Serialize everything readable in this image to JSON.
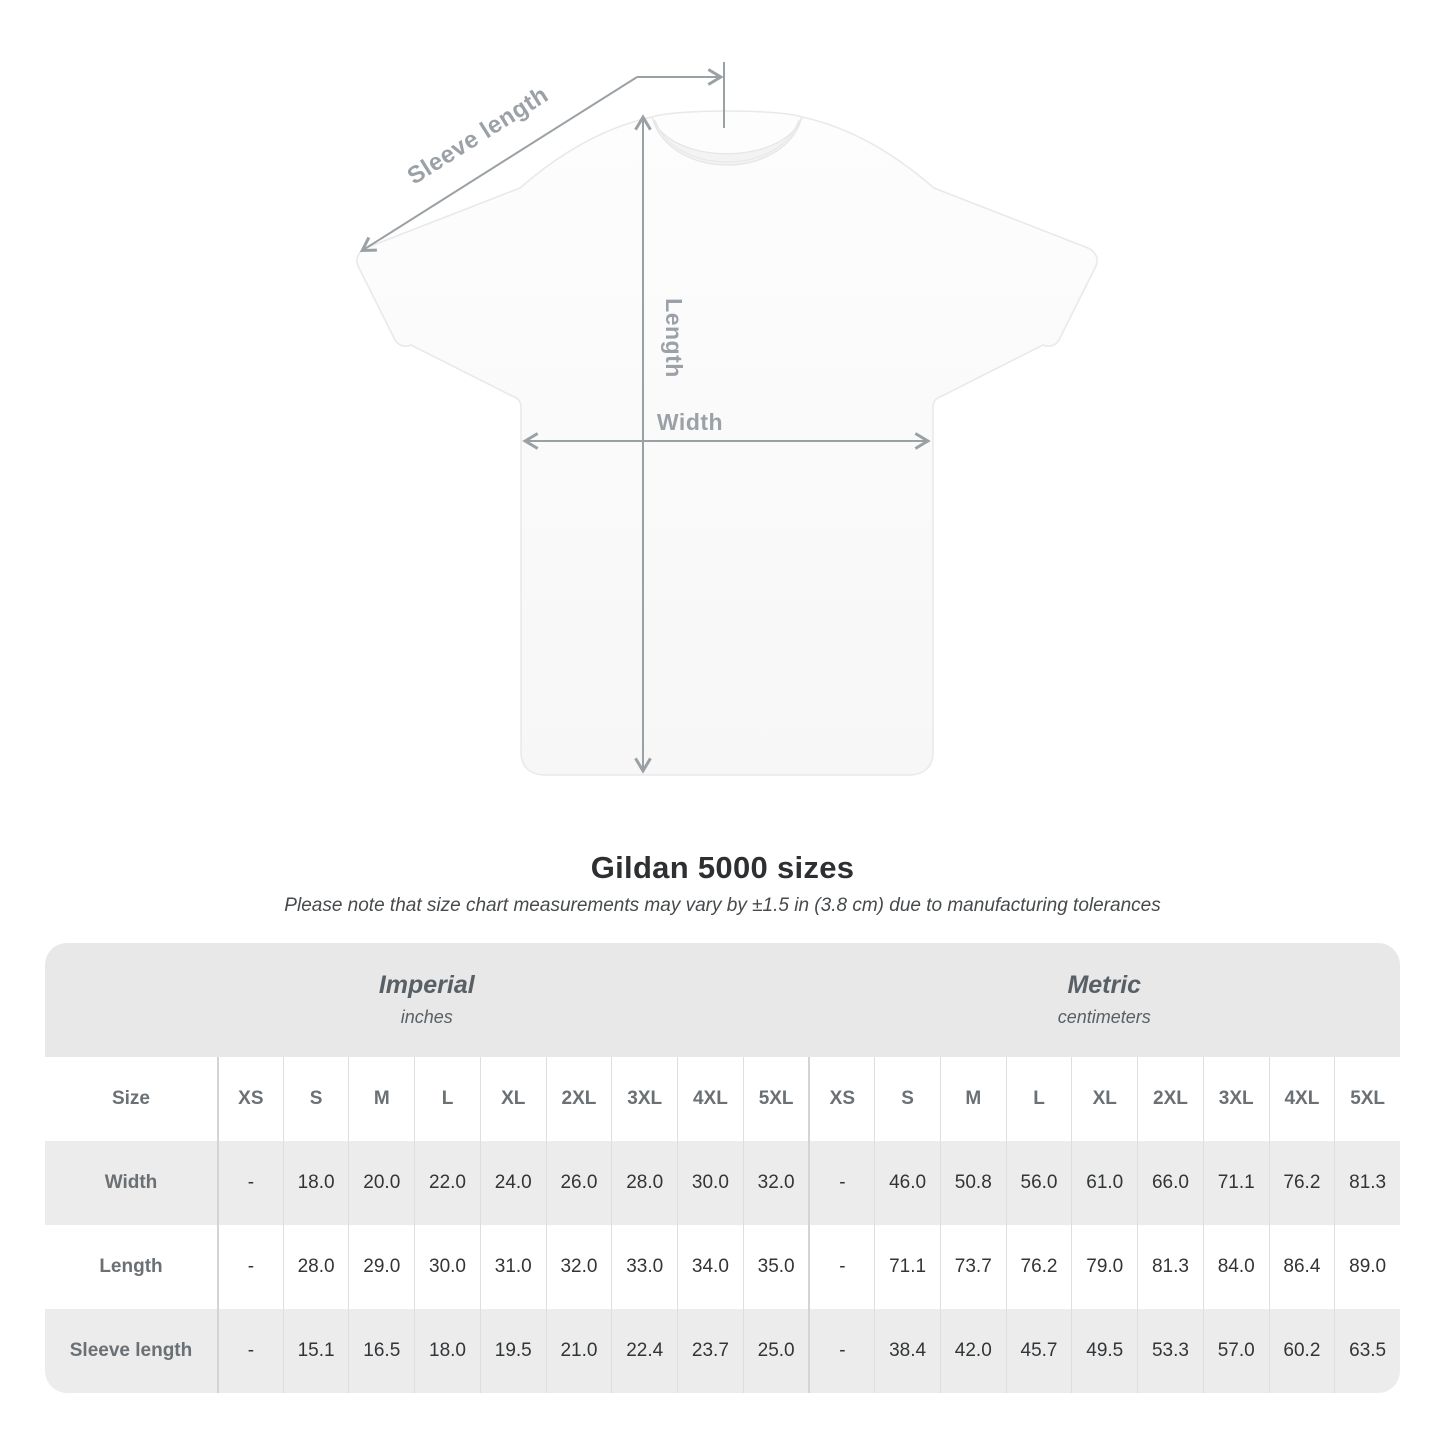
{
  "diagram": {
    "labels": {
      "sleeve_length": "Sleeve length",
      "length": "Length",
      "width": "Width"
    },
    "measure_color": "#9aa1a5"
  },
  "title": "Gildan 5000 sizes",
  "subtitle": "Please note that size chart measurements may vary by ±1.5 in (3.8 cm) due to manufacturing tolerances",
  "table": {
    "size_header": "Size",
    "unit_headers": [
      {
        "name": "Imperial",
        "unit": "inches"
      },
      {
        "name": "Metric",
        "unit": "centimeters"
      }
    ],
    "sizes": [
      "XS",
      "S",
      "M",
      "L",
      "XL",
      "2XL",
      "3XL",
      "4XL",
      "5XL"
    ],
    "rows": [
      {
        "label": "Width",
        "imperial": [
          "-",
          "18.0",
          "20.0",
          "22.0",
          "24.0",
          "26.0",
          "28.0",
          "30.0",
          "32.0"
        ],
        "metric": [
          "-",
          "46.0",
          "50.8",
          "56.0",
          "61.0",
          "66.0",
          "71.1",
          "76.2",
          "81.3"
        ]
      },
      {
        "label": "Length",
        "imperial": [
          "-",
          "28.0",
          "29.0",
          "30.0",
          "31.0",
          "32.0",
          "33.0",
          "34.0",
          "35.0"
        ],
        "metric": [
          "-",
          "71.1",
          "73.7",
          "76.2",
          "79.0",
          "81.3",
          "84.0",
          "86.4",
          "89.0"
        ]
      },
      {
        "label": "Sleeve length",
        "imperial": [
          "-",
          "15.1",
          "16.5",
          "18.0",
          "19.5",
          "21.0",
          "22.4",
          "23.7",
          "25.0"
        ],
        "metric": [
          "-",
          "38.4",
          "42.0",
          "45.7",
          "49.5",
          "53.3",
          "57.0",
          "60.2",
          "63.5"
        ]
      }
    ],
    "colors": {
      "header_band": "#e8e8e8",
      "row_band": "#ececec",
      "divider": "#dedede",
      "header_text": "#6a7074",
      "value_text": "#323537"
    }
  },
  "chart_data": {
    "type": "table",
    "title": "Gildan 5000 sizes",
    "note": "Please note that size chart measurements may vary by ±1.5 in (3.8 cm) due to manufacturing tolerances",
    "column_groups": [
      {
        "label": "Imperial",
        "unit": "inches",
        "sizes": [
          "XS",
          "S",
          "M",
          "L",
          "XL",
          "2XL",
          "3XL",
          "4XL",
          "5XL"
        ]
      },
      {
        "label": "Metric",
        "unit": "centimeters",
        "sizes": [
          "XS",
          "S",
          "M",
          "L",
          "XL",
          "2XL",
          "3XL",
          "4XL",
          "5XL"
        ]
      }
    ],
    "rows": [
      {
        "measurement": "Width",
        "imperial_inches": [
          "-",
          18.0,
          20.0,
          22.0,
          24.0,
          26.0,
          28.0,
          30.0,
          32.0
        ],
        "metric_centimeters": [
          "-",
          46.0,
          50.8,
          56.0,
          61.0,
          66.0,
          71.1,
          76.2,
          81.3
        ]
      },
      {
        "measurement": "Length",
        "imperial_inches": [
          "-",
          28.0,
          29.0,
          30.0,
          31.0,
          32.0,
          33.0,
          34.0,
          35.0
        ],
        "metric_centimeters": [
          "-",
          71.1,
          73.7,
          76.2,
          79.0,
          81.3,
          84.0,
          86.4,
          89.0
        ]
      },
      {
        "measurement": "Sleeve length",
        "imperial_inches": [
          "-",
          15.1,
          16.5,
          18.0,
          19.5,
          21.0,
          22.4,
          23.7,
          25.0
        ],
        "metric_centimeters": [
          "-",
          38.4,
          42.0,
          45.7,
          49.5,
          53.3,
          57.0,
          60.2,
          63.5
        ]
      }
    ]
  }
}
